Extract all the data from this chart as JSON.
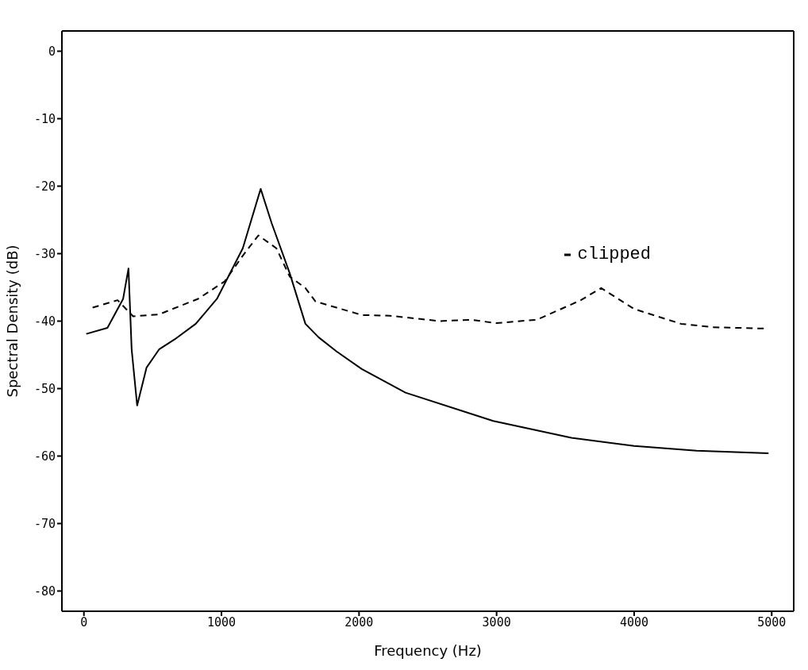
{
  "chart_data": {
    "type": "line",
    "xlabel": "Frequency (Hz)",
    "ylabel": "Spectral Density (dB)",
    "xlim": [
      -160,
      5160
    ],
    "ylim": [
      -83,
      3
    ],
    "xticks": [
      0,
      1000,
      2000,
      3000,
      4000,
      5000
    ],
    "yticks": [
      -80,
      -70,
      -60,
      -50,
      -40,
      -30,
      -20,
      -10,
      0
    ],
    "legend": "right",
    "marker": "none",
    "series": [
      {
        "color": "#000000",
        "line_style": "solid",
        "x": [
          17,
          171,
          285,
          324,
          347,
          387,
          455,
          546,
          660,
          813,
          967,
          1155,
          1285,
          1365,
          1496,
          1610,
          1706,
          1837,
          2020,
          2338,
          2975,
          3544,
          4000,
          4454,
          4977
        ],
        "values": [
          -41.9,
          -41,
          -36.7,
          -32.2,
          -44.2,
          -52.5,
          -46.9,
          -44.2,
          -42.7,
          -40.4,
          -36.7,
          -29.2,
          -20.4,
          -25.5,
          -32.9,
          -40.4,
          -42.4,
          -44.5,
          -47.1,
          -50.6,
          -54.8,
          -57.3,
          -58.5,
          -59.2,
          -59.6
        ]
      },
      {
        "name": "clipped",
        "color": "#000000",
        "line_style": "dashed",
        "x": [
          63,
          245,
          358,
          546,
          830,
          1024,
          1155,
          1268,
          1399,
          1496,
          1610,
          1684,
          1837,
          2020,
          2224,
          2588,
          2815,
          2997,
          3293,
          3612,
          3760,
          4000,
          4340,
          4568,
          4943
        ],
        "values": [
          -38,
          -36.9,
          -39.3,
          -39,
          -36.7,
          -34.1,
          -30.3,
          -27.3,
          -29.2,
          -33.4,
          -35.1,
          -37.1,
          -38,
          -39.1,
          -39.2,
          -40,
          -39.8,
          -40.3,
          -39.8,
          -36.9,
          -35.1,
          -38.2,
          -40.4,
          -40.9,
          -41.1
        ]
      }
    ]
  }
}
